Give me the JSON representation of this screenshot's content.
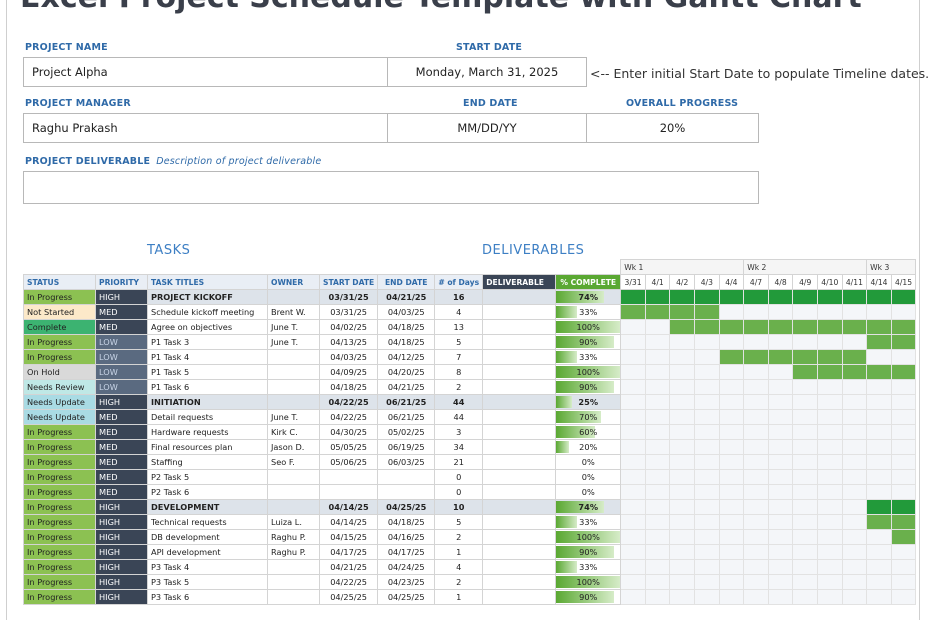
{
  "title": "Excel Project Schedule Template with Gantt Chart",
  "project": {
    "name_label": "PROJECT NAME",
    "name_value": "Project Alpha",
    "start_label": "START DATE",
    "start_value": "Monday, March 31, 2025",
    "start_note": "<-- Enter initial Start Date to populate Timeline dates.",
    "manager_label": "PROJECT MANAGER",
    "manager_value": "Raghu Prakash",
    "end_label": "END DATE",
    "end_value": "MM/DD/YY",
    "progress_label": "OVERALL PROGRESS",
    "progress_value": "20%",
    "deliverable_label": "PROJECT DELIVERABLE",
    "deliverable_hint": "Description of project deliverable",
    "deliverable_value": ""
  },
  "sections": {
    "tasks": "TASKS",
    "deliverables": "DELIVERABLES"
  },
  "columns": [
    "STATUS",
    "PRIORITY",
    "TASK TITLES",
    "OWNER",
    "START DATE",
    "END DATE",
    "# of Days",
    "DELIVERABLE",
    "% COMPLETE"
  ],
  "weeks": [
    "Wk 1",
    "Wk 2",
    "Wk 3"
  ],
  "days": [
    "3/31",
    "4/1",
    "4/2",
    "4/3",
    "4/4",
    "4/7",
    "4/8",
    "4/9",
    "4/10",
    "4/11",
    "4/14",
    "4/15"
  ],
  "colors": {
    "In Progress": "#8cc152",
    "Not Started": "#fce9c9",
    "Complete": "#3cb371",
    "On Hold": "#d9d9d9",
    "Needs Review": "#bfe8e6",
    "Needs Update": "#a9dbe4",
    "gantt_on": "#6ab04c",
    "gantt_group": "#229a3a"
  },
  "rows": [
    {
      "status": "In Progress",
      "priority": "HIGH",
      "title": "PROJECT KICKOFF",
      "owner": "",
      "start": "03/31/25",
      "end": "04/21/25",
      "days": "16",
      "deliverable": "",
      "pct": 74,
      "pct_label": "74%",
      "group": true,
      "gantt": [
        0,
        12
      ]
    },
    {
      "status": "Not Started",
      "priority": "MED",
      "title": "Schedule kickoff meeting",
      "owner": "Brent W.",
      "start": "03/31/25",
      "end": "04/03/25",
      "days": "4",
      "deliverable": "",
      "pct": 33,
      "pct_label": "33%",
      "group": false,
      "gantt": [
        0,
        4
      ]
    },
    {
      "status": "Complete",
      "priority": "MED",
      "title": "Agree on objectives",
      "owner": "June T.",
      "start": "04/02/25",
      "end": "04/18/25",
      "days": "13",
      "deliverable": "",
      "pct": 100,
      "pct_label": "100%",
      "group": false,
      "gantt": [
        2,
        12
      ]
    },
    {
      "status": "In Progress",
      "priority": "LOW",
      "title": "P1 Task 3",
      "owner": "June T.",
      "start": "04/13/25",
      "end": "04/18/25",
      "days": "5",
      "deliverable": "",
      "pct": 90,
      "pct_label": "90%",
      "group": false,
      "gantt": [
        10,
        12
      ]
    },
    {
      "status": "In Progress",
      "priority": "LOW",
      "title": "P1 Task 4",
      "owner": "",
      "start": "04/03/25",
      "end": "04/12/25",
      "days": "7",
      "deliverable": "",
      "pct": 33,
      "pct_label": "33%",
      "group": false,
      "gantt": [
        4,
        10
      ]
    },
    {
      "status": "On Hold",
      "priority": "LOW",
      "title": "P1 Task 5",
      "owner": "",
      "start": "04/09/25",
      "end": "04/20/25",
      "days": "8",
      "deliverable": "",
      "pct": 100,
      "pct_label": "100%",
      "group": false,
      "gantt": [
        7,
        12
      ]
    },
    {
      "status": "Needs Review",
      "priority": "LOW",
      "title": "P1 Task 6",
      "owner": "",
      "start": "04/18/25",
      "end": "04/21/25",
      "days": "2",
      "deliverable": "",
      "pct": 90,
      "pct_label": "90%",
      "group": false,
      "gantt": [
        0,
        0
      ]
    },
    {
      "status": "Needs Update",
      "priority": "HIGH",
      "title": "INITIATION",
      "owner": "",
      "start": "04/22/25",
      "end": "06/21/25",
      "days": "44",
      "deliverable": "",
      "pct": 25,
      "pct_label": "25%",
      "group": true,
      "gantt": [
        0,
        0
      ]
    },
    {
      "status": "Needs Update",
      "priority": "MED",
      "title": "Detail requests",
      "owner": "June T.",
      "start": "04/22/25",
      "end": "06/21/25",
      "days": "44",
      "deliverable": "",
      "pct": 70,
      "pct_label": "70%",
      "group": false,
      "gantt": [
        0,
        0
      ]
    },
    {
      "status": "In Progress",
      "priority": "MED",
      "title": "Hardware requests",
      "owner": "Kirk C.",
      "start": "04/30/25",
      "end": "05/02/25",
      "days": "3",
      "deliverable": "",
      "pct": 60,
      "pct_label": "60%",
      "group": false,
      "gantt": [
        0,
        0
      ]
    },
    {
      "status": "In Progress",
      "priority": "MED",
      "title": "Final resources plan",
      "owner": "Jason D.",
      "start": "05/05/25",
      "end": "06/19/25",
      "days": "34",
      "deliverable": "",
      "pct": 20,
      "pct_label": "20%",
      "group": false,
      "gantt": [
        0,
        0
      ]
    },
    {
      "status": "In Progress",
      "priority": "MED",
      "title": "Staffing",
      "owner": "Seo F.",
      "start": "05/06/25",
      "end": "06/03/25",
      "days": "21",
      "deliverable": "",
      "pct": 0,
      "pct_label": "0%",
      "group": false,
      "gantt": [
        0,
        0
      ]
    },
    {
      "status": "In Progress",
      "priority": "MED",
      "title": "P2 Task 5",
      "owner": "",
      "start": "",
      "end": "",
      "days": "0",
      "deliverable": "",
      "pct": 0,
      "pct_label": "0%",
      "group": false,
      "gantt": [
        0,
        0
      ]
    },
    {
      "status": "In Progress",
      "priority": "MED",
      "title": "P2 Task 6",
      "owner": "",
      "start": "",
      "end": "",
      "days": "0",
      "deliverable": "",
      "pct": 0,
      "pct_label": "0%",
      "group": false,
      "gantt": [
        0,
        0
      ]
    },
    {
      "status": "In Progress",
      "priority": "HIGH",
      "title": "DEVELOPMENT",
      "owner": "",
      "start": "04/14/25",
      "end": "04/25/25",
      "days": "10",
      "deliverable": "",
      "pct": 74,
      "pct_label": "74%",
      "group": true,
      "gantt": [
        10,
        12
      ]
    },
    {
      "status": "In Progress",
      "priority": "HIGH",
      "title": "Technical requests",
      "owner": "Luiza L.",
      "start": "04/14/25",
      "end": "04/18/25",
      "days": "5",
      "deliverable": "",
      "pct": 33,
      "pct_label": "33%",
      "group": false,
      "gantt": [
        10,
        12
      ]
    },
    {
      "status": "In Progress",
      "priority": "HIGH",
      "title": "DB development",
      "owner": "Raghu P.",
      "start": "04/15/25",
      "end": "04/16/25",
      "days": "2",
      "deliverable": "",
      "pct": 100,
      "pct_label": "100%",
      "group": false,
      "gantt": [
        11,
        12
      ]
    },
    {
      "status": "In Progress",
      "priority": "HIGH",
      "title": "API development",
      "owner": "Raghu P.",
      "start": "04/17/25",
      "end": "04/17/25",
      "days": "1",
      "deliverable": "",
      "pct": 90,
      "pct_label": "90%",
      "group": false,
      "gantt": [
        0,
        0
      ]
    },
    {
      "status": "In Progress",
      "priority": "HIGH",
      "title": "P3 Task 4",
      "owner": "",
      "start": "04/21/25",
      "end": "04/24/25",
      "days": "4",
      "deliverable": "",
      "pct": 33,
      "pct_label": "33%",
      "group": false,
      "gantt": [
        0,
        0
      ]
    },
    {
      "status": "In Progress",
      "priority": "HIGH",
      "title": "P3 Task 5",
      "owner": "",
      "start": "04/22/25",
      "end": "04/23/25",
      "days": "2",
      "deliverable": "",
      "pct": 100,
      "pct_label": "100%",
      "group": false,
      "gantt": [
        0,
        0
      ]
    },
    {
      "status": "In Progress",
      "priority": "HIGH",
      "title": "P3 Task 6",
      "owner": "",
      "start": "04/25/25",
      "end": "04/25/25",
      "days": "1",
      "deliverable": "",
      "pct": 90,
      "pct_label": "90%",
      "group": false,
      "gantt": [
        0,
        0
      ]
    }
  ]
}
